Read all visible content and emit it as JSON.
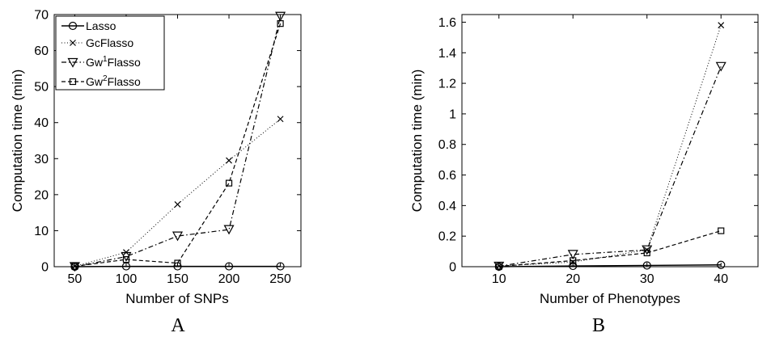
{
  "chart_data": [
    {
      "type": "line",
      "panel_label": "A",
      "xlabel": "Number of SNPs",
      "ylabel": "Computation time (min)",
      "xlim": [
        30,
        270
      ],
      "ylim": [
        0,
        70
      ],
      "xticks": [
        50,
        100,
        150,
        200,
        250
      ],
      "yticks": [
        0,
        10,
        20,
        30,
        40,
        50,
        60,
        70
      ],
      "grid": false,
      "legend": "top-left",
      "x": [
        50,
        100,
        150,
        200,
        250
      ],
      "series": [
        {
          "name": "Lasso",
          "values": [
            0.0,
            0.1,
            0.1,
            0.1,
            0.1
          ],
          "marker": "circle",
          "dash": "solid"
        },
        {
          "name": "GcFlasso",
          "values": [
            0.1,
            4.0,
            17.3,
            29.5,
            41.0
          ],
          "marker": "x",
          "dash": "dotted"
        },
        {
          "name": "Gw¹Flasso",
          "sup": "1",
          "values": [
            0.0,
            2.8,
            8.5,
            10.3,
            69.5
          ],
          "marker": "triangle-down",
          "dash": "dashdot"
        },
        {
          "name": "Gw²Flasso",
          "sup": "2",
          "values": [
            0.1,
            2.0,
            1.0,
            23.2,
            67.5
          ],
          "marker": "square",
          "dash": "dashed"
        }
      ]
    },
    {
      "type": "line",
      "panel_label": "B",
      "xlabel": "Number of Phenotypes",
      "ylabel": "Computation time (min)",
      "xlim": [
        5,
        45
      ],
      "ylim": [
        0,
        1.65
      ],
      "xticks": [
        10,
        20,
        30,
        40
      ],
      "yticks": [
        0,
        0.2,
        0.4,
        0.6,
        0.8,
        1,
        1.2,
        1.4,
        1.6
      ],
      "grid": false,
      "x": [
        10,
        20,
        30,
        40
      ],
      "series": [
        {
          "name": "Lasso",
          "values": [
            0.0,
            0.005,
            0.008,
            0.012
          ],
          "marker": "circle",
          "dash": "solid"
        },
        {
          "name": "GcFlasso",
          "values": [
            0.004,
            0.03,
            0.11,
            1.58
          ],
          "marker": "x",
          "dash": "dotted"
        },
        {
          "name": "Gw¹Flasso",
          "values": [
            0.003,
            0.08,
            0.11,
            1.31
          ],
          "marker": "triangle-down",
          "dash": "dashdot"
        },
        {
          "name": "Gw²Flasso",
          "values": [
            0.002,
            0.04,
            0.09,
            0.235
          ],
          "marker": "square",
          "dash": "dashed"
        }
      ]
    }
  ],
  "legend_entries": [
    {
      "base": "Lasso",
      "sup": "",
      "rest": ""
    },
    {
      "base": "GcFlasso",
      "sup": "",
      "rest": ""
    },
    {
      "base": "Gw",
      "sup": "1",
      "rest": "Flasso"
    },
    {
      "base": "Gw",
      "sup": "2",
      "rest": "Flasso"
    }
  ]
}
